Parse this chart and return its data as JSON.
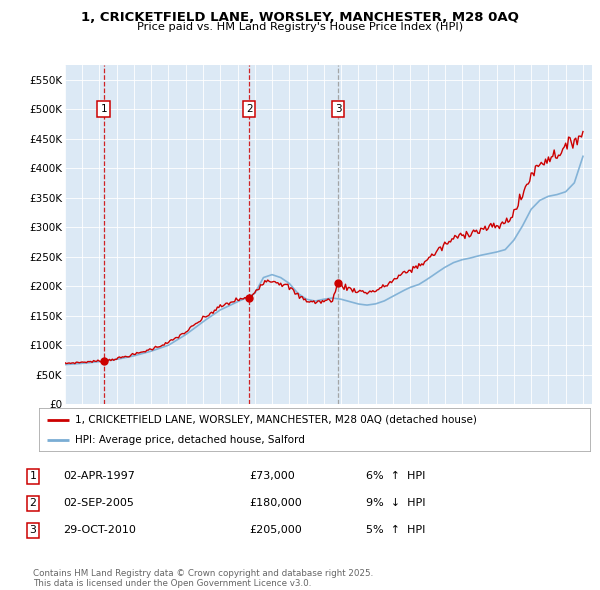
{
  "title1": "1, CRICKETFIELD LANE, WORSLEY, MANCHESTER, M28 0AQ",
  "title2": "Price paid vs. HM Land Registry's House Price Index (HPI)",
  "legend_property": "1, CRICKETFIELD LANE, WORSLEY, MANCHESTER, M28 0AQ (detached house)",
  "legend_hpi": "HPI: Average price, detached house, Salford",
  "footer": "Contains HM Land Registry data © Crown copyright and database right 2025.\nThis data is licensed under the Open Government Licence v3.0.",
  "property_color": "#cc0000",
  "hpi_color": "#7aadd4",
  "background_color": "#dce9f5",
  "purchases": [
    {
      "num": 1,
      "date_label": "02-APR-1997",
      "price": 73000,
      "pct": "6%",
      "dir": "↑",
      "x": 1997.25,
      "vline_style": "dashed_red"
    },
    {
      "num": 2,
      "date_label": "02-SEP-2005",
      "price": 180000,
      "pct": "9%",
      "dir": "↓",
      "x": 2005.67,
      "vline_style": "dashed_red"
    },
    {
      "num": 3,
      "date_label": "29-OCT-2010",
      "price": 205000,
      "pct": "5%",
      "dir": "↑",
      "x": 2010.83,
      "vline_style": "dashed_gray"
    }
  ],
  "ylim": [
    0,
    575000
  ],
  "yticks": [
    0,
    50000,
    100000,
    150000,
    200000,
    250000,
    300000,
    350000,
    400000,
    450000,
    500000,
    550000
  ],
  "ytick_labels": [
    "£0",
    "£50K",
    "£100K",
    "£150K",
    "£200K",
    "£250K",
    "£300K",
    "£350K",
    "£400K",
    "£450K",
    "£500K",
    "£550K"
  ],
  "xlim_start": 1995,
  "xlim_end": 2025.5
}
